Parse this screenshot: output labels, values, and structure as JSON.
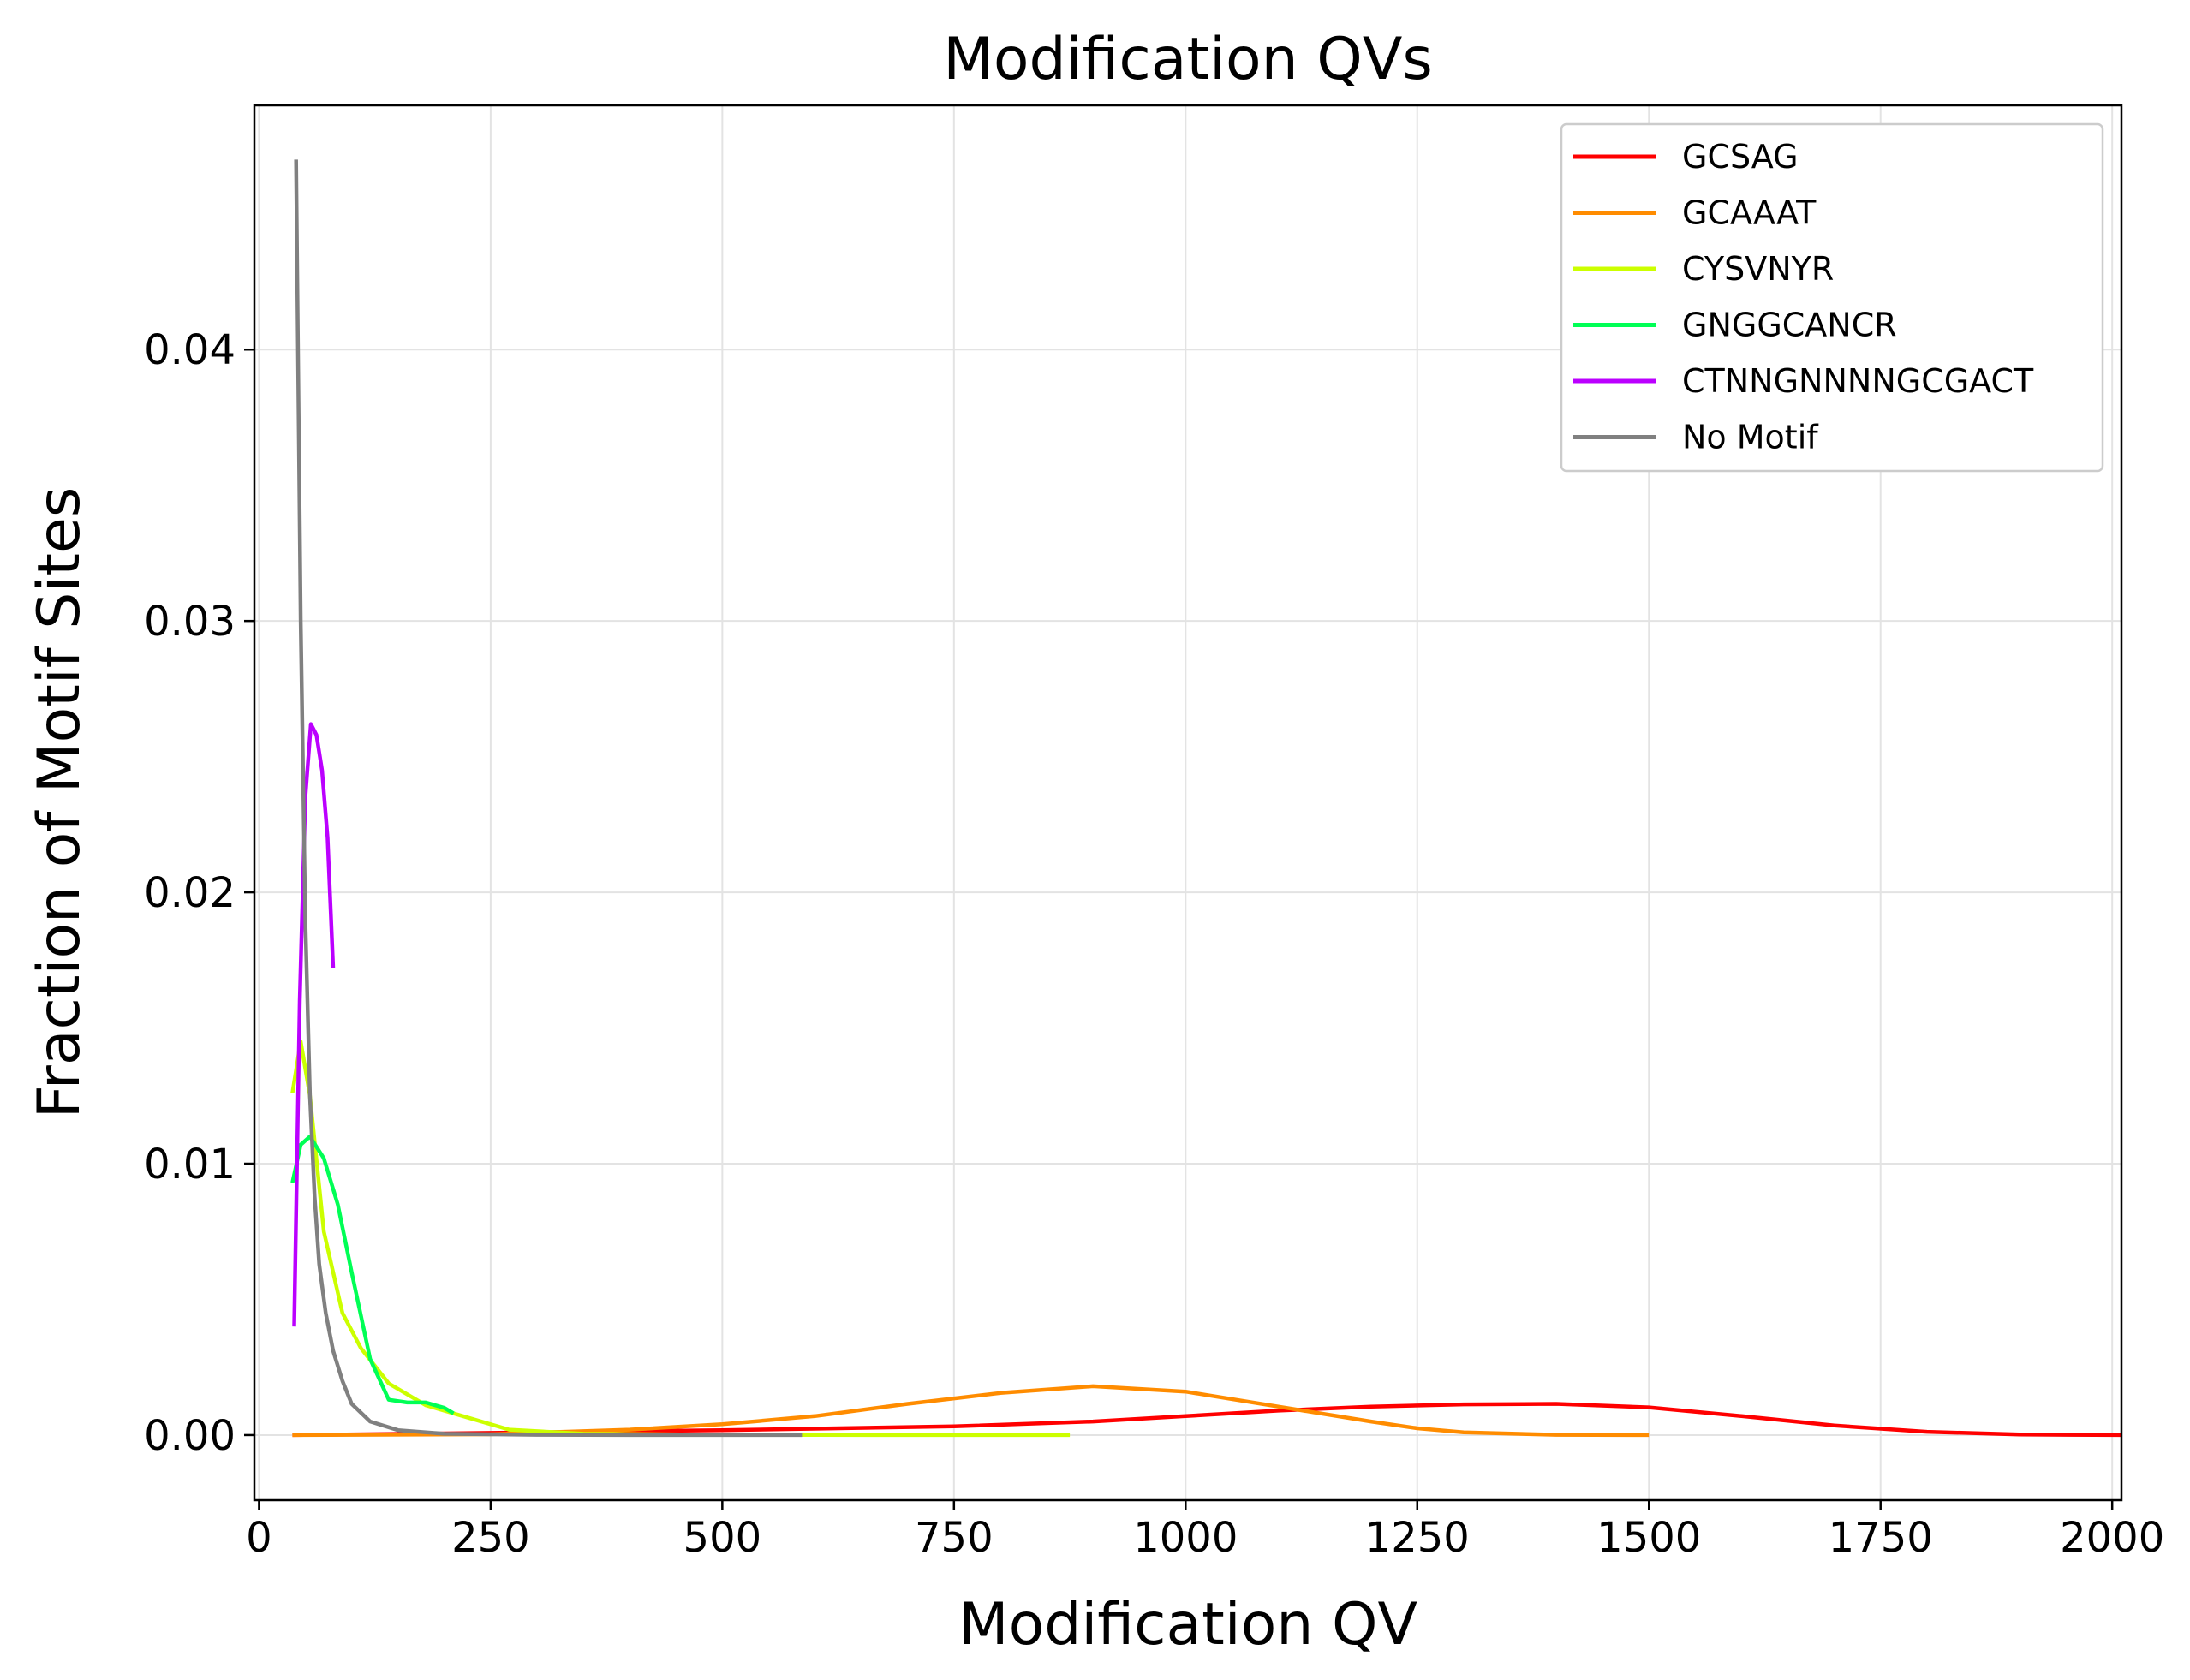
{
  "chart_data": {
    "type": "line",
    "title": "Modification QVs",
    "xlabel": "Modification QV",
    "ylabel": "Fraction of Motif Sites",
    "xlim": [
      -5,
      2010
    ],
    "ylim": [
      -0.0024,
      0.049
    ],
    "xticks": [
      0,
      250,
      500,
      750,
      1000,
      1250,
      1500,
      1750,
      2000
    ],
    "xtick_labels": [
      "0",
      "250",
      "500",
      "750",
      "1000",
      "1250",
      "1500",
      "1750",
      "2000"
    ],
    "yticks": [
      0.0,
      0.01,
      0.02,
      0.03,
      0.04
    ],
    "ytick_labels": [
      "0.00",
      "0.01",
      "0.02",
      "0.03",
      "0.04"
    ],
    "grid": true,
    "legend_position": "top-right",
    "series": [
      {
        "name": "GCSAG",
        "color": "#ff0000",
        "x": [
          36,
          250,
          500,
          750,
          900,
          1000,
          1100,
          1200,
          1300,
          1400,
          1500,
          1600,
          1700,
          1800,
          1900,
          2010
        ],
        "y": [
          0.0,
          8e-05,
          0.00018,
          0.00032,
          0.0005,
          0.0007,
          0.0009,
          0.00105,
          0.00113,
          0.00115,
          0.00102,
          0.0007,
          0.00035,
          0.00012,
          2e-05,
          0.0
        ]
      },
      {
        "name": "GCAAAT",
        "color": "#ff8c00",
        "x": [
          36,
          250,
          400,
          500,
          600,
          700,
          800,
          900,
          1000,
          1100,
          1200,
          1250,
          1300,
          1400,
          1500
        ],
        "y": [
          0.0,
          3e-05,
          0.0002,
          0.0004,
          0.0007,
          0.00115,
          0.00155,
          0.0018,
          0.0016,
          0.00105,
          0.0005,
          0.00025,
          0.0001,
          1e-05,
          0.0
        ]
      },
      {
        "name": "CYSVNYR",
        "color": "#ccff00",
        "x": [
          36,
          45,
          55,
          70,
          90,
          110,
          140,
          180,
          220,
          270,
          350,
          500,
          700,
          875
        ],
        "y": [
          0.0126,
          0.0145,
          0.0125,
          0.0075,
          0.0045,
          0.0032,
          0.0019,
          0.0011,
          0.0007,
          0.0002,
          5e-05,
          1e-05,
          0.0,
          0.0
        ]
      },
      {
        "name": "GNGGCANCR",
        "color": "#00ff55",
        "x": [
          36,
          45,
          55,
          70,
          85,
          100,
          120,
          140,
          160,
          180,
          200,
          210
        ],
        "y": [
          0.0093,
          0.0107,
          0.011,
          0.0102,
          0.0085,
          0.006,
          0.0028,
          0.0013,
          0.0012,
          0.0012,
          0.001,
          0.0008
        ]
      },
      {
        "name": "CTNNGNNNNGCGACT",
        "color": "#bb00ff",
        "x": [
          38,
          44,
          50,
          56,
          62,
          68,
          74,
          80
        ],
        "y": [
          0.004,
          0.016,
          0.0235,
          0.0262,
          0.0258,
          0.0245,
          0.022,
          0.0172
        ]
      },
      {
        "name": "No Motif",
        "color": "#808080",
        "x": [
          40,
          45,
          50,
          55,
          60,
          65,
          72,
          80,
          90,
          100,
          120,
          150,
          200,
          300,
          400,
          586
        ],
        "y": [
          0.047,
          0.03,
          0.019,
          0.0125,
          0.0088,
          0.0063,
          0.0045,
          0.0031,
          0.002,
          0.00115,
          0.0005,
          0.00018,
          5e-05,
          1e-05,
          0.0,
          0.0
        ]
      }
    ]
  }
}
